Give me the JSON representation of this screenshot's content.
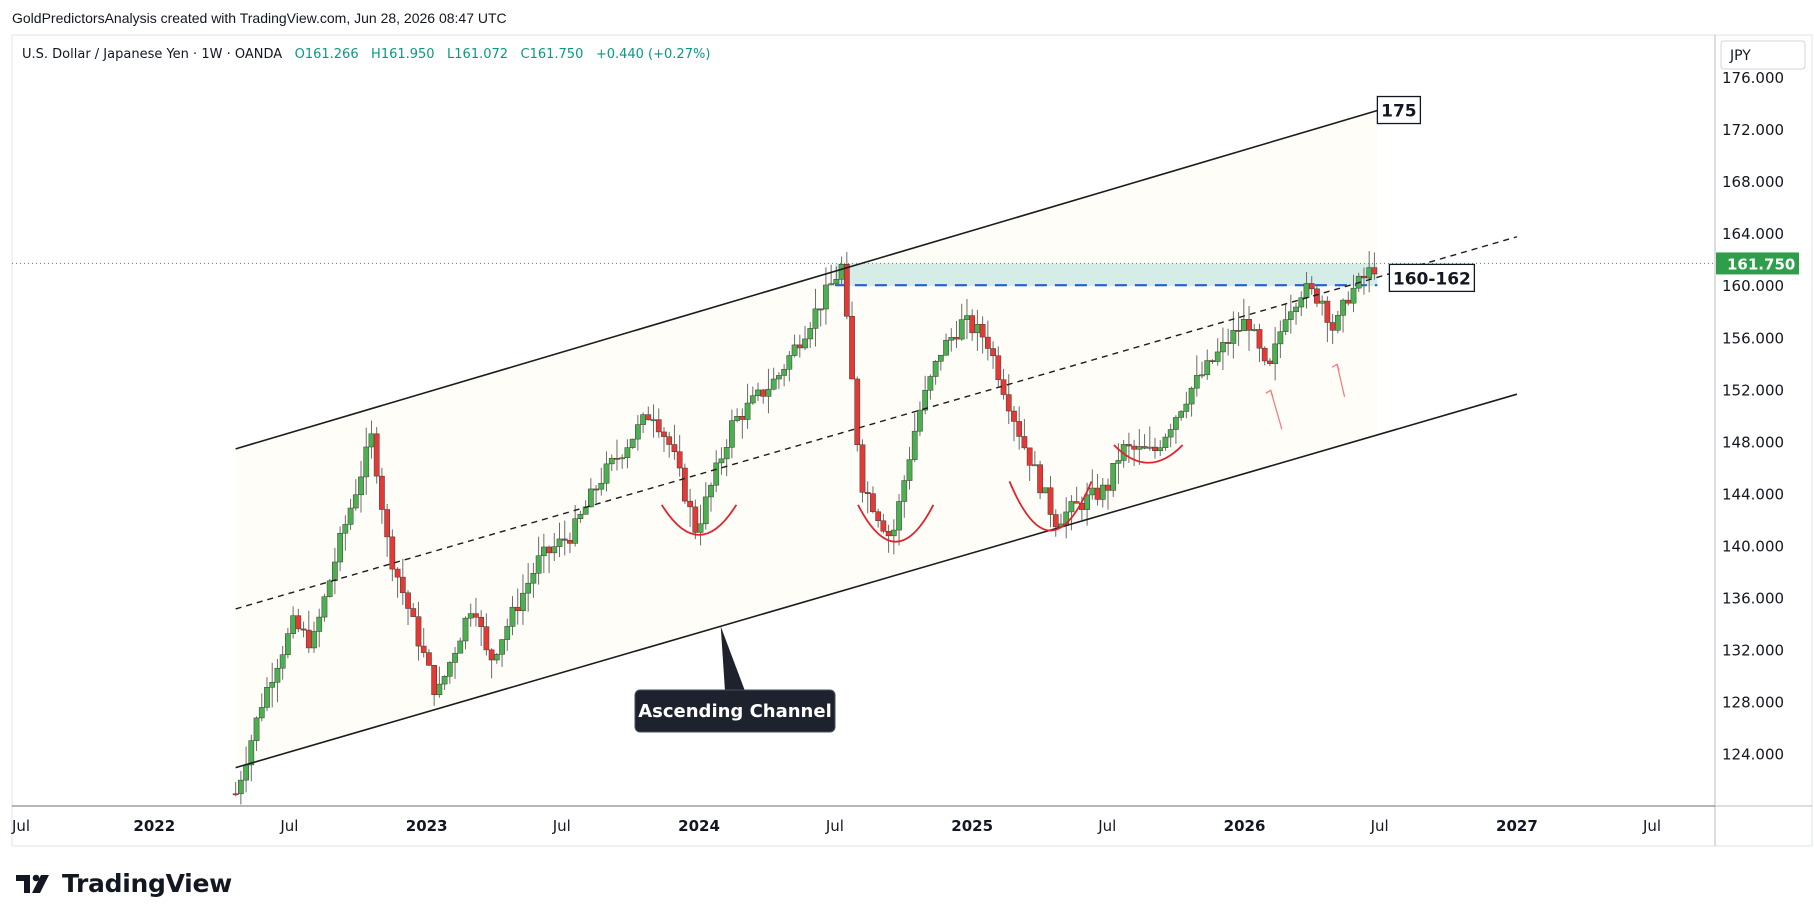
{
  "header": {
    "text": "GoldPredictorsAnalysis created with TradingView.com, Jun 28, 2026 08:47 UTC"
  },
  "legend": {
    "symbol": "U.S. Dollar / Japanese Yen · 1W · OANDA",
    "open": "O161.266",
    "high": "H161.950",
    "low": "L161.072",
    "close": "C161.750",
    "change": "+0.440 (+0.27%)"
  },
  "currency": "JPY",
  "last_price": "161.750",
  "footer": {
    "brand": "TradingView"
  },
  "colors": {
    "up": "#4caf50",
    "down": "#e53935",
    "zone": "#b2dfdb",
    "accent_line": "#1e63d6",
    "last_price_bg": "#2e9e4a",
    "arc": "#e0242f",
    "channel_fill": "#fffdf7"
  },
  "annotations": {
    "target_label": "175",
    "zone_label": "160-162",
    "channel_label": "Ascending Channel"
  },
  "chart_data": {
    "type": "candlestick",
    "title": "",
    "x_ticks": [
      "Jul",
      "2022",
      "Jul",
      "2023",
      "Jul",
      "2024",
      "Jul",
      "2025",
      "Jul",
      "2026",
      "Jul",
      "2027",
      "Jul"
    ],
    "y_ticks": [
      "176.000",
      "172.000",
      "168.000",
      "164.000",
      "160.000",
      "156.000",
      "152.000",
      "148.000",
      "144.000",
      "140.000",
      "136.000",
      "132.000",
      "128.000",
      "124.000"
    ],
    "ylim": [
      120,
      177.5
    ],
    "series": [
      {
        "name": "",
        "price_path": [
          [
            "2022-04-20",
            121.0
          ],
          [
            "2022-05-25",
            128.0
          ],
          [
            "2022-06-10",
            130.5
          ],
          [
            "2022-07-06",
            134.0
          ],
          [
            "2022-08-01",
            132.5
          ],
          [
            "2022-09-05",
            140.0
          ],
          [
            "2022-10-20",
            148.5
          ],
          [
            "2022-11-10",
            140.0
          ],
          [
            "2022-12-20",
            133.0
          ],
          [
            "2023-01-15",
            128.5
          ],
          [
            "2023-03-05",
            136.0
          ],
          [
            "2023-03-25",
            131.0
          ],
          [
            "2023-06-01",
            139.0
          ],
          [
            "2023-07-15",
            141.0
          ],
          [
            "2023-08-20",
            145.0
          ],
          [
            "2023-10-30",
            150.5
          ],
          [
            "2023-11-25",
            147.5
          ],
          [
            "2023-12-28",
            141.2
          ],
          [
            "2024-02-15",
            149.5
          ],
          [
            "2024-04-15",
            153.0
          ],
          [
            "2024-06-20",
            159.5
          ],
          [
            "2024-07-10",
            161.5
          ],
          [
            "2024-08-05",
            145.0
          ],
          [
            "2024-09-15",
            140.5
          ],
          [
            "2024-10-20",
            150.0
          ],
          [
            "2024-11-20",
            155.0
          ],
          [
            "2024-12-20",
            157.3
          ],
          [
            "2025-01-20",
            156.0
          ],
          [
            "2025-03-10",
            148.0
          ],
          [
            "2025-04-22",
            142.0
          ],
          [
            "2025-06-01",
            143.5
          ],
          [
            "2025-07-01",
            144.5
          ],
          [
            "2025-07-20",
            147.5
          ],
          [
            "2025-09-01",
            147.2
          ],
          [
            "2025-10-20",
            152.0
          ],
          [
            "2025-12-10",
            155.8
          ],
          [
            "2026-01-05",
            157.5
          ],
          [
            "2026-02-01",
            153.0
          ],
          [
            "2026-02-25",
            158.0
          ],
          [
            "2026-03-20",
            159.8
          ],
          [
            "2026-04-15",
            159.0
          ],
          [
            "2026-05-01",
            156.5
          ],
          [
            "2026-05-20",
            159.3
          ],
          [
            "2026-06-28",
            161.75
          ]
        ]
      }
    ],
    "channel": {
      "upper": [
        [
          "2022-04-20",
          147.5
        ],
        [
          "2026-06-28",
          173.5
        ]
      ],
      "lower": [
        [
          "2022-04-20",
          123.0
        ],
        [
          "2027-01-01",
          151.7
        ]
      ],
      "mid": [
        [
          "2022-04-20",
          135.2
        ],
        [
          "2027-01-01",
          163.8
        ]
      ]
    },
    "zone": [
      160.0,
      161.75
    ],
    "last_price": 161.75
  }
}
